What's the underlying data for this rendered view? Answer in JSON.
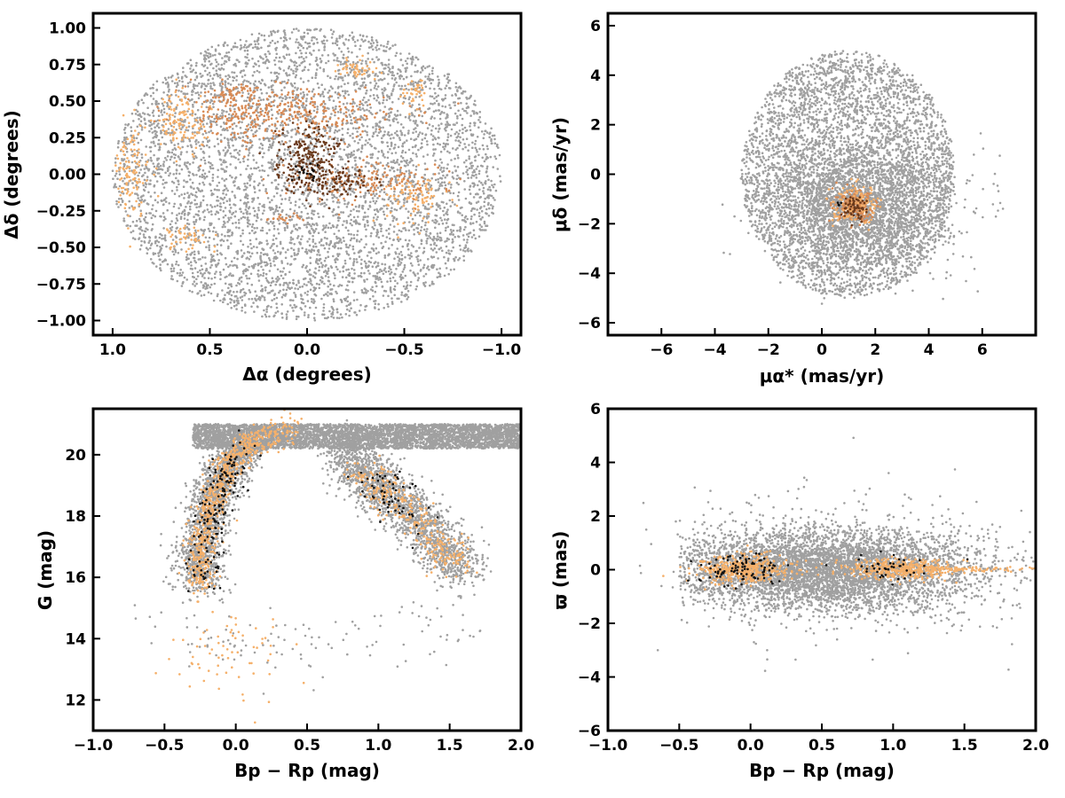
{
  "colors": {
    "field": "#a0a0a0",
    "light": "#f5b06a",
    "mid": "#d88a54",
    "dark": "#6b3a1c",
    "black": "#111111"
  },
  "chart_data": [
    {
      "type": "scatter",
      "id": "sky-positions",
      "xlabel": "Δα (degrees)",
      "ylabel": "Δδ (degrees)",
      "xlim": [
        1.1,
        -1.1
      ],
      "ylim": [
        -1.1,
        1.1
      ],
      "x_inverted": true,
      "xticks": [
        1.0,
        0.5,
        0.0,
        -0.5,
        -1.0
      ],
      "xtick_labels": [
        "1.0",
        "0.5",
        "0.0",
        "−0.5",
        "−1.0"
      ],
      "yticks": [
        -1.0,
        -0.75,
        -0.5,
        -0.25,
        0.0,
        0.25,
        0.5,
        0.75,
        1.0
      ],
      "ytick_labels": [
        "−1.00",
        "−0.75",
        "−0.50",
        "−0.25",
        "0.00",
        "0.25",
        "0.50",
        "0.75",
        "1.00"
      ],
      "field": {
        "shape": "disc",
        "center": [
          0.0,
          0.0
        ],
        "radius_x": 1.0,
        "radius_y": 1.0,
        "count": 5200
      },
      "groups": [
        {
          "color": "mid",
          "center": [
            0.05,
            0.42
          ],
          "spread": [
            0.3,
            0.08
          ],
          "count": 260
        },
        {
          "color": "mid",
          "center": [
            0.35,
            0.4
          ],
          "spread": [
            0.12,
            0.1
          ],
          "count": 120
        },
        {
          "color": "light",
          "center": [
            0.65,
            0.35
          ],
          "spread": [
            0.06,
            0.1
          ],
          "count": 110
        },
        {
          "color": "light",
          "center": [
            0.9,
            0.02
          ],
          "spread": [
            0.05,
            0.15
          ],
          "count": 110
        },
        {
          "color": "light",
          "center": [
            -0.25,
            0.72
          ],
          "spread": [
            0.04,
            0.03
          ],
          "count": 45
        },
        {
          "color": "light",
          "center": [
            -0.55,
            0.55
          ],
          "spread": [
            0.03,
            0.05
          ],
          "count": 35
        },
        {
          "color": "light",
          "center": [
            -0.55,
            -0.15
          ],
          "spread": [
            0.08,
            0.08
          ],
          "count": 90
        },
        {
          "color": "light",
          "center": [
            0.62,
            -0.43
          ],
          "spread": [
            0.06,
            0.04
          ],
          "count": 45
        },
        {
          "color": "mid",
          "center": [
            0.38,
            0.56
          ],
          "spread": [
            0.05,
            0.03
          ],
          "count": 35
        },
        {
          "color": "mid",
          "center": [
            -0.3,
            -0.05
          ],
          "spread": [
            0.2,
            0.07
          ],
          "count": 140
        },
        {
          "color": "mid",
          "center": [
            0.12,
            -0.3
          ],
          "spread": [
            0.05,
            0.02
          ],
          "count": 20
        },
        {
          "color": "dark",
          "center": [
            0.0,
            0.1
          ],
          "spread": [
            0.08,
            0.12
          ],
          "count": 220
        },
        {
          "color": "dark",
          "center": [
            -0.15,
            -0.05
          ],
          "spread": [
            0.1,
            0.05
          ],
          "count": 90
        },
        {
          "color": "black",
          "center": [
            0.0,
            0.0
          ],
          "spread": [
            0.03,
            0.03
          ],
          "count": 20
        }
      ]
    },
    {
      "type": "scatter",
      "id": "proper-motions",
      "xlabel": "μα* (mas/yr)",
      "ylabel": "μδ (mas/yr)",
      "xlim": [
        -8,
        8
      ],
      "ylim": [
        -6.5,
        6.5
      ],
      "xticks": [
        -6,
        -4,
        -2,
        0,
        2,
        4,
        6
      ],
      "xtick_labels": [
        "−6",
        "−4",
        "−2",
        "0",
        "2",
        "4",
        "6"
      ],
      "yticks": [
        -6,
        -4,
        -2,
        0,
        2,
        4,
        6
      ],
      "ytick_labels": [
        "−6",
        "−4",
        "−2",
        "0",
        "2",
        "4",
        "6"
      ],
      "field": {
        "shape": "disc",
        "center": [
          1.0,
          0.0
        ],
        "radius_x": 4.0,
        "radius_y": 5.0,
        "count": 4200
      },
      "field_core": {
        "center": [
          1.5,
          -1.3
        ],
        "spread": [
          1.6,
          1.2
        ],
        "count": 2200
      },
      "groups": [
        {
          "color": "mid",
          "center": [
            1.3,
            -1.3
          ],
          "spread": [
            0.35,
            0.3
          ],
          "count": 220
        },
        {
          "color": "light",
          "center": [
            1.3,
            -1.3
          ],
          "spread": [
            0.45,
            0.4
          ],
          "count": 120
        },
        {
          "color": "dark",
          "center": [
            1.2,
            -1.3
          ],
          "spread": [
            0.25,
            0.25
          ],
          "count": 60
        },
        {
          "color": "black",
          "center": [
            0.6,
            -1.2
          ],
          "spread": [
            0.08,
            0.08
          ],
          "count": 6
        }
      ]
    },
    {
      "type": "scatter",
      "id": "color-magnitude",
      "xlabel": "Bp − Rp (mag)",
      "ylabel": "G (mag)",
      "xlim": [
        -1.0,
        2.0
      ],
      "ylim": [
        11.0,
        21.5
      ],
      "xticks": [
        -1.0,
        -0.5,
        0.0,
        0.5,
        1.0,
        1.5,
        2.0
      ],
      "xtick_labels": [
        "−1.0",
        "−0.5",
        "0.0",
        "0.5",
        "1.0",
        "1.5",
        "2.0"
      ],
      "yticks": [
        12,
        14,
        16,
        18,
        20
      ],
      "ytick_labels": [
        "12",
        "14",
        "16",
        "18",
        "20"
      ],
      "sequences": [
        {
          "name_hidden": true,
          "color": "field",
          "count": 4500,
          "x_range": [
            -0.3,
            2.0
          ],
          "y_range": [
            20.2,
            21.0
          ]
        },
        {
          "color": "field",
          "count": 1800,
          "path": [
            [
              -0.25,
              15.8
            ],
            [
              -0.25,
              17.0
            ],
            [
              -0.18,
              18.5
            ],
            [
              -0.05,
              19.6
            ],
            [
              0.1,
              20.4
            ]
          ],
          "spread": [
            0.08,
            0.25
          ]
        },
        {
          "color": "field",
          "count": 1800,
          "path": [
            [
              0.75,
              20.4
            ],
            [
              0.9,
              19.4
            ],
            [
              1.05,
              18.8
            ],
            [
              1.25,
              18.0
            ],
            [
              1.45,
              17.0
            ],
            [
              1.6,
              16.2
            ]
          ],
          "spread": [
            0.1,
            0.35
          ]
        },
        {
          "color": "light",
          "count": 700,
          "path": [
            [
              -0.25,
              15.8
            ],
            [
              -0.25,
              17.0
            ],
            [
              -0.18,
              18.5
            ],
            [
              -0.05,
              19.6
            ],
            [
              0.1,
              20.4
            ],
            [
              0.4,
              20.9
            ]
          ],
          "spread": [
            0.05,
            0.25
          ]
        },
        {
          "color": "light",
          "count": 300,
          "path": [
            [
              0.9,
              19.4
            ],
            [
              1.05,
              18.8
            ],
            [
              1.25,
              18.0
            ],
            [
              1.45,
              17.0
            ],
            [
              1.55,
              16.4
            ]
          ],
          "spread": [
            0.08,
            0.3
          ]
        },
        {
          "color": "black",
          "count": 160,
          "path": [
            [
              -0.25,
              15.8
            ],
            [
              -0.2,
              17.5
            ],
            [
              -0.1,
              19.0
            ],
            [
              0.05,
              20.2
            ]
          ],
          "spread": [
            0.06,
            0.4
          ]
        },
        {
          "color": "black",
          "count": 60,
          "path": [
            [
              0.95,
              19.2
            ],
            [
              1.1,
              18.6
            ],
            [
              1.3,
              17.6
            ]
          ],
          "spread": [
            0.08,
            0.35
          ]
        },
        {
          "color": "light",
          "count": 70,
          "path": [
            [
              -0.4,
              14.0
            ],
            [
              -0.1,
              13.5
            ],
            [
              0.2,
              13.2
            ]
          ],
          "spread": [
            0.15,
            0.8
          ]
        },
        {
          "color": "field",
          "count": 120,
          "path": [
            [
              -0.4,
              15.0
            ],
            [
              -0.2,
              13.8
            ],
            [
              0.3,
              13.5
            ],
            [
              1.4,
              14.5
            ],
            [
              1.6,
              14.2
            ]
          ],
          "spread": [
            0.2,
            0.6
          ]
        }
      ]
    },
    {
      "type": "scatter",
      "id": "parallax-color",
      "xlabel": "Bp − Rp (mag)",
      "ylabel": "ϖ (mas)",
      "xlim": [
        -1.0,
        2.0
      ],
      "ylim": [
        -6.0,
        6.0
      ],
      "xticks": [
        -1.0,
        -0.5,
        0.0,
        0.5,
        1.0,
        1.5,
        2.0
      ],
      "xtick_labels": [
        "−1.0",
        "−0.5",
        "0.0",
        "0.5",
        "1.0",
        "1.5",
        "2.0"
      ],
      "yticks": [
        -6,
        -4,
        -2,
        0,
        2,
        4,
        6
      ],
      "ytick_labels": [
        "−6",
        "−4",
        "−2",
        "0",
        "2",
        "4",
        "6"
      ],
      "groups": [
        {
          "color": "field",
          "center": [
            0.5,
            0.0
          ],
          "spread": [
            0.55,
            0.75
          ],
          "count": 5000,
          "x_range": [
            -0.5,
            2.0
          ]
        },
        {
          "color": "field",
          "center": [
            0.6,
            0.0
          ],
          "spread": [
            0.6,
            1.6
          ],
          "count": 400,
          "x_range": [
            -0.8,
            2.0
          ]
        },
        {
          "color": "light",
          "center": [
            -0.05,
            0.0
          ],
          "spread": [
            0.15,
            0.25
          ],
          "count": 450
        },
        {
          "color": "light",
          "center": [
            1.05,
            0.0
          ],
          "spread": [
            0.2,
            0.18
          ],
          "count": 380
        },
        {
          "color": "light",
          "center": [
            1.55,
            0.0
          ],
          "spread": [
            0.25,
            0.05
          ],
          "count": 80
        },
        {
          "color": "black",
          "center": [
            -0.05,
            0.0
          ],
          "spread": [
            0.15,
            0.3
          ],
          "count": 90
        },
        {
          "color": "black",
          "center": [
            1.0,
            0.0
          ],
          "spread": [
            0.12,
            0.25
          ],
          "count": 40
        }
      ]
    }
  ]
}
